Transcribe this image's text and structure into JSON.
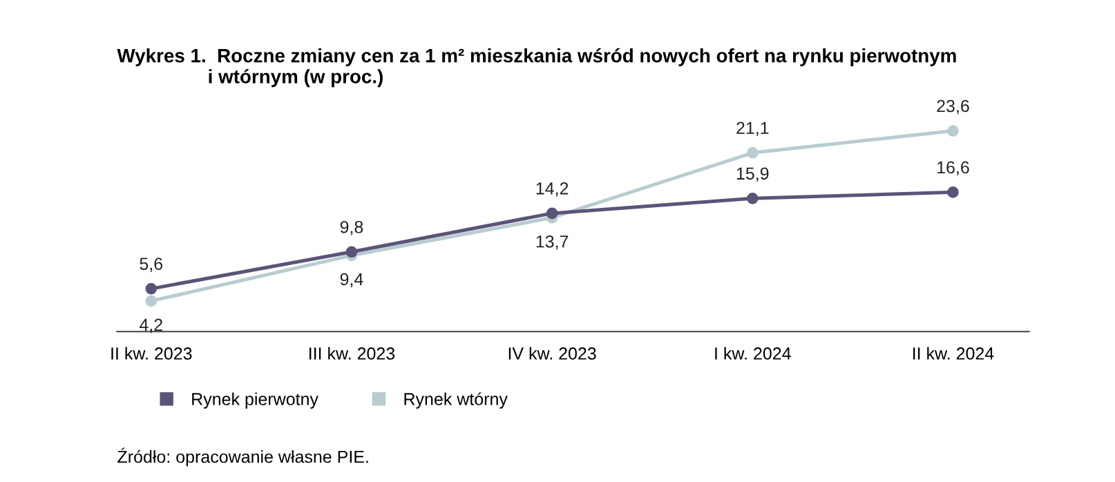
{
  "chart_data": {
    "type": "line",
    "title": "Wykres 1.  Roczne zmiany cen za 1 m² mieszkania wśród nowych ofert na rynku pierwotnym\n                 i wtórnym (w proc.)",
    "categories": [
      "II kw. 2023",
      "III kw. 2023",
      "IV kw. 2023",
      "I kw. 2024",
      "II kw. 2024"
    ],
    "series": [
      {
        "name": "Rynek pierwotny",
        "color": "#5b5478",
        "values": [
          5.6,
          9.8,
          14.2,
          15.9,
          16.6
        ],
        "value_labels": [
          "5,6",
          "9,8",
          "14,2",
          "15,9",
          "16,6"
        ]
      },
      {
        "name": "Rynek wtórny",
        "color": "#b9cccf",
        "values": [
          4.2,
          9.4,
          13.7,
          21.1,
          23.6
        ],
        "value_labels": [
          "4,2",
          "9,4",
          "13,7",
          "21,1",
          "23,6"
        ]
      }
    ],
    "marker": "circle",
    "line_style": "solid",
    "grid": false,
    "legend": "bottom left",
    "annotations": [
      "Źródło: opracowanie własne PIE."
    ]
  }
}
